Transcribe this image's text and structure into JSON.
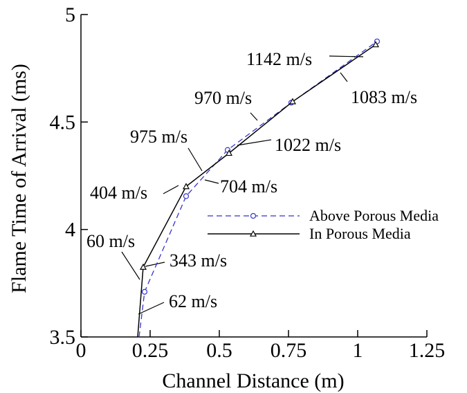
{
  "chart_data": {
    "type": "line",
    "xlabel": "Channel Distance (m)",
    "ylabel": "Flame Time of Arrival (ms)",
    "xlim": [
      0,
      1.25
    ],
    "ylim": [
      3.5,
      5
    ],
    "xticks": [
      0,
      0.25,
      0.5,
      0.75,
      1,
      1.25
    ],
    "xtick_labels": [
      "0",
      "0.25",
      "0.5",
      "0.75",
      "1",
      "1.25"
    ],
    "yticks": [
      3.5,
      4,
      4.5,
      5
    ],
    "ytick_labels": [
      "3.5",
      "4",
      "4.5",
      "5"
    ],
    "grid": false,
    "legend_position": "center-right",
    "series": [
      {
        "name": "Above Porous Media",
        "color": "#3333cc",
        "style": "dashed",
        "marker": "circle",
        "x": [
          0.21,
          0.23,
          0.38,
          0.53,
          0.76,
          1.07
        ],
        "y": [
          3.5,
          3.71,
          4.155,
          4.37,
          4.59,
          4.875
        ]
      },
      {
        "name": "In Porous Media",
        "color": "#000000",
        "style": "solid",
        "marker": "triangle",
        "x": [
          0.205,
          0.225,
          0.38,
          0.535,
          0.765,
          1.065
        ],
        "y": [
          3.5,
          3.825,
          4.2,
          4.355,
          4.595,
          4.86
        ]
      }
    ],
    "annotations": [
      "60 m/s",
      "404 m/s",
      "975 m/s",
      "970 m/s",
      "1142 m/s",
      "62 m/s",
      "343 m/s",
      "704 m/s",
      "1022 m/s",
      "1083 m/s"
    ]
  }
}
